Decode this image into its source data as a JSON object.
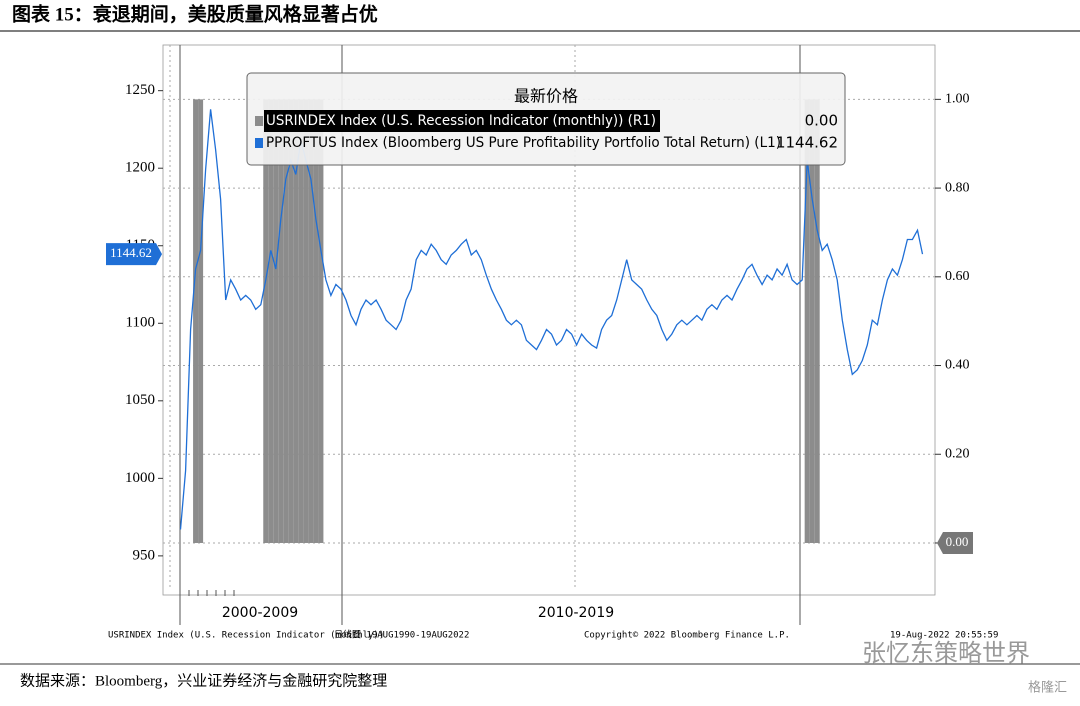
{
  "title": "图表 15：衰退期间，美股质量风格显著占优",
  "source": "数据来源：Bloomberg，兴业证券经济与金融研究院整理",
  "watermark": "张忆东策略世界",
  "watermark2": "格隆汇",
  "chart_data": {
    "type": "line",
    "legend_title": "最新价格",
    "categories": [
      null,
      null,
      null,
      null,
      null,
      null,
      null,
      null,
      null,
      null,
      null,
      null,
      null,
      null,
      null,
      null,
      null,
      null,
      null,
      null,
      null,
      null,
      null,
      null,
      null,
      null,
      null,
      null,
      null,
      null,
      null,
      null,
      null,
      null,
      null,
      null,
      null,
      null,
      null,
      null,
      null,
      null,
      null,
      null,
      null,
      null,
      null,
      null,
      null,
      null,
      null,
      null,
      null,
      null,
      null,
      null,
      null,
      null,
      null,
      null,
      null,
      null,
      null,
      null,
      null,
      null,
      null,
      null,
      null,
      null,
      null,
      null,
      null,
      null,
      null,
      null,
      null,
      null,
      null,
      null,
      null,
      null,
      null,
      null,
      null,
      null,
      null,
      null,
      null,
      null,
      null,
      null,
      null,
      null,
      null,
      null,
      null,
      null,
      null,
      null,
      null,
      null,
      null,
      null,
      null,
      null,
      null,
      null,
      null,
      null,
      null,
      null,
      null,
      null,
      null,
      null,
      null,
      null,
      null,
      null,
      null,
      null,
      null,
      null,
      null,
      null,
      null,
      null,
      null,
      null,
      null,
      null,
      null,
      null,
      null,
      null,
      null,
      null,
      null,
      null,
      null,
      null,
      null,
      null,
      null,
      null,
      null,
      null,
      null,
      null,
      null,
      null,
      null,
      null
    ],
    "x_group_labels": [
      "2000-2009",
      "2010-2019"
    ],
    "series": [
      {
        "name": "USRINDEX Index (U.S. Recession Indicator (monthly))  (R1)",
        "color": "#8c8c8c",
        "axis": "y2",
        "last_label": "0.00",
        "values": [
          0,
          0,
          0,
          0,
          0,
          0,
          1,
          1,
          0,
          0,
          0,
          0,
          0,
          0,
          0,
          0,
          0,
          0,
          0,
          0,
          1,
          1,
          1,
          1,
          1,
          1,
          1,
          1,
          1,
          1,
          1,
          1,
          0,
          0,
          0,
          0,
          0,
          0,
          0,
          0,
          0,
          0,
          0,
          0,
          0,
          0,
          0,
          0,
          0,
          0,
          0,
          0,
          0,
          0,
          0,
          0,
          0,
          0,
          0,
          0,
          0,
          0,
          0,
          0,
          0,
          0,
          0,
          0,
          0,
          0,
          0,
          0,
          0,
          0,
          0,
          0,
          0,
          0,
          0,
          0,
          0,
          0,
          0,
          0,
          0,
          0,
          0,
          0,
          0,
          0,
          0,
          0,
          0,
          0,
          0,
          0,
          0,
          0,
          0,
          0,
          0,
          0,
          0,
          0,
          0,
          0,
          0,
          0,
          0,
          0,
          0,
          0,
          0,
          0,
          0,
          0,
          0,
          0,
          0,
          0,
          0,
          0,
          0,
          0,
          0,
          0,
          0,
          0,
          1,
          1,
          1,
          0,
          0,
          0,
          0,
          0,
          0,
          0,
          0,
          0,
          0,
          0,
          0,
          0,
          0,
          0,
          0,
          0,
          0,
          0,
          0,
          0,
          0,
          0
        ]
      },
      {
        "name": "PPROFTUS Index (Bloomberg US Pure Profitability Portfolio Total Return)  (L1)",
        "color": "#1f6fd6",
        "last_label": "1144.62",
        "values": [
          null,
          null,
          null,
          967,
          1005,
          1096,
          1135,
          1147,
          1199,
          1238,
          1212,
          1180,
          1115,
          1128,
          1122,
          1115,
          1118,
          1115,
          1109,
          1112,
          1128,
          1147,
          1135,
          1167,
          1193,
          1205,
          1196,
          1218,
          1205,
          1193,
          1167,
          1147,
          1128,
          1118,
          1125,
          1122,
          1115,
          1105,
          1099,
          1109,
          1115,
          1112,
          1115,
          1109,
          1102,
          1099,
          1096,
          1102,
          1115,
          1122,
          1141,
          1147,
          1144,
          1151,
          1147,
          1141,
          1138,
          1144,
          1147,
          1151,
          1154,
          1144,
          1147,
          1141,
          1131,
          1122,
          1115,
          1109,
          1102,
          1099,
          1102,
          1099,
          1089,
          1086,
          1083,
          1089,
          1096,
          1093,
          1086,
          1089,
          1096,
          1093,
          1086,
          1093,
          1089,
          1086,
          1084,
          1096,
          1102,
          1105,
          1115,
          1128,
          1141,
          1128,
          1125,
          1122,
          1115,
          1109,
          1105,
          1096,
          1089,
          1093,
          1099,
          1102,
          1099,
          1102,
          1105,
          1102,
          1109,
          1112,
          1109,
          1115,
          1118,
          1115,
          1122,
          1128,
          1135,
          1138,
          1131,
          1125,
          1131,
          1128,
          1135,
          1131,
          1138,
          1128,
          1125,
          1128,
          1205,
          1180,
          1160,
          1147,
          1151,
          1141,
          1128,
          1102,
          1083,
          1067,
          1070,
          1076,
          1086,
          1102,
          1099,
          1115,
          1128,
          1135,
          1131,
          1141,
          1154,
          1154,
          1160,
          1144.62,
          null,
          null
        ]
      }
    ],
    "ylim": [
      928,
      1273
    ],
    "yticks": [
      950,
      1000,
      1050,
      1100,
      1150,
      1200,
      1250
    ],
    "y2lim": [
      -0.106,
      1.1
    ],
    "y2ticks": [
      {
        "value": 0,
        "label": "0.00"
      },
      {
        "value": 0.2,
        "label": "0.20"
      },
      {
        "value": 0.4,
        "label": "0.40"
      },
      {
        "value": 0.6,
        "label": "0.60"
      },
      {
        "value": 0.8,
        "label": "0.80"
      },
      {
        "value": 1,
        "label": "1.00"
      }
    ],
    "grid": true,
    "footer": [
      "USRINDEX Index (U.S. Recession Indicator (monthly))",
      "日线图 19AUG1990-19AUG2022",
      "Copyright© 2022 Bloomberg Finance L.P.",
      "19-Aug-2022 20:55:59"
    ]
  }
}
